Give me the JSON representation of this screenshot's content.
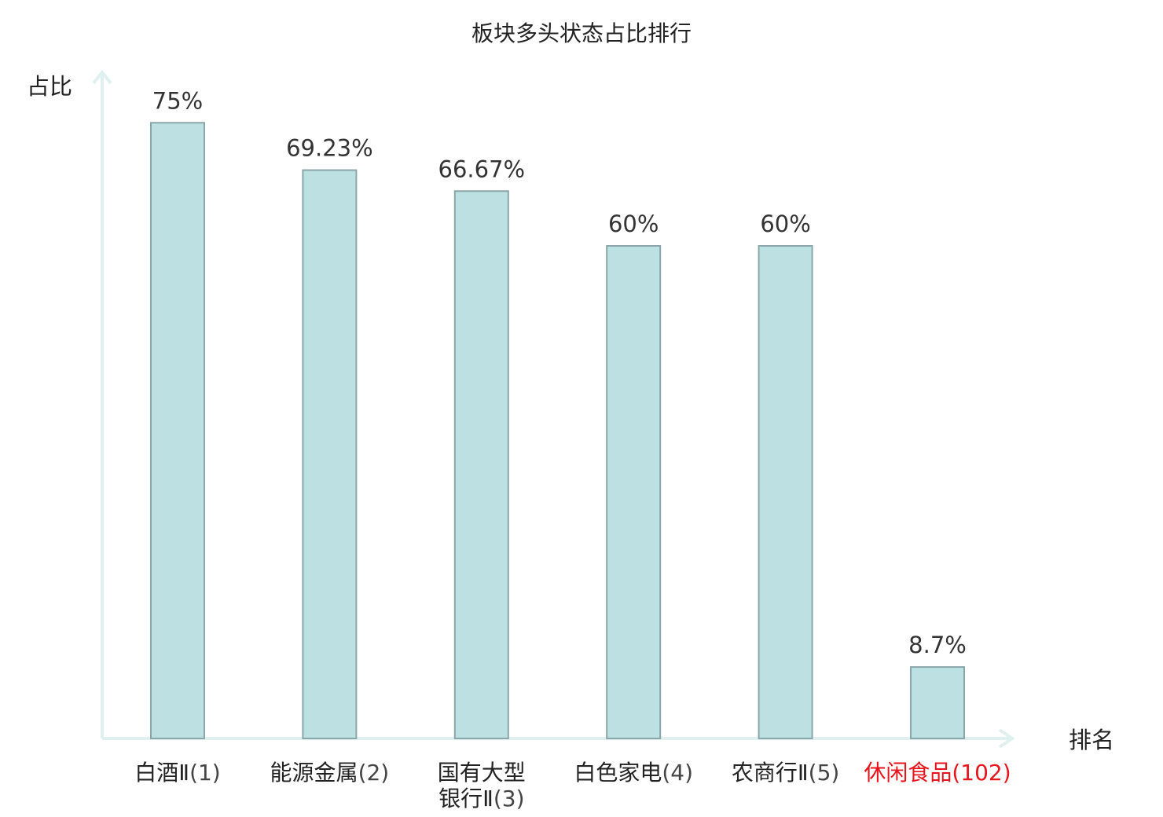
{
  "chart_data": {
    "type": "bar",
    "title": "板块多头状态占比排行",
    "ylabel": "占比",
    "xlabel": "排名",
    "ylim": [
      0,
      80
    ],
    "grid": false,
    "categories": [
      {
        "lines": [
          {
            "name": "白酒Ⅱ",
            "rank": "(1)"
          }
        ],
        "highlight": false
      },
      {
        "lines": [
          {
            "name": "能源金属",
            "rank": "(2)"
          }
        ],
        "highlight": false
      },
      {
        "lines": [
          {
            "name": "国有大型",
            "rank": ""
          },
          {
            "name": "银行Ⅱ",
            "rank": "(3)"
          }
        ],
        "highlight": false
      },
      {
        "lines": [
          {
            "name": "白色家电",
            "rank": "(4)"
          }
        ],
        "highlight": false
      },
      {
        "lines": [
          {
            "name": "农商行Ⅱ",
            "rank": "(5)"
          }
        ],
        "highlight": false
      },
      {
        "lines": [
          {
            "name": "休闲食品",
            "rank": "(102)"
          }
        ],
        "highlight": true
      }
    ],
    "values": [
      75,
      69.23,
      66.67,
      60,
      60,
      8.7
    ],
    "value_labels": [
      "75%",
      "69.23%",
      "66.67%",
      "60%",
      "60%",
      "8.7%"
    ],
    "colors": {
      "bar_fill": "#bde1e3",
      "bar_stroke": "#8aa6a8",
      "axis": "#dff0ee",
      "highlight_text": "#e8141c",
      "text": "#222222"
    }
  }
}
